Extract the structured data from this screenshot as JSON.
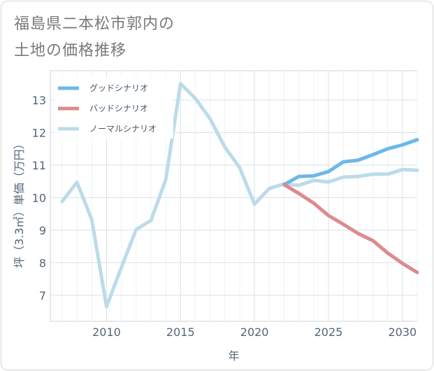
{
  "title_lines": [
    "福島県二本松市郭内の",
    "土地の価格推移"
  ],
  "chart_data": {
    "type": "line",
    "title": "福島県二本松市郭内の土地の価格推移",
    "xlabel": "年",
    "ylabel": "坪（3.3㎡）単価（万円）",
    "xlim": [
      2006.2,
      2031
    ],
    "ylim": [
      6.2,
      13.9
    ],
    "x_ticks": [
      2010,
      2015,
      2020,
      2025,
      2030
    ],
    "y_ticks": [
      7,
      8,
      9,
      10,
      11,
      12,
      13
    ],
    "grid": true,
    "legend_position": "top-left",
    "series": [
      {
        "name": "グッドシナリオ",
        "color": "#6cb8ea",
        "x": [
          2022,
          2023,
          2024,
          2025,
          2026,
          2027,
          2028,
          2029,
          2030,
          2031
        ],
        "y": [
          10.4,
          10.65,
          10.67,
          10.8,
          11.1,
          11.15,
          11.32,
          11.5,
          11.62,
          11.78
        ]
      },
      {
        "name": "バッドシナリオ",
        "color": "#dc8a8f",
        "x": [
          2022,
          2023,
          2024,
          2025,
          2026,
          2027,
          2028,
          2029,
          2030,
          2031
        ],
        "y": [
          10.4,
          10.13,
          9.83,
          9.45,
          9.18,
          8.9,
          8.68,
          8.3,
          7.98,
          7.7
        ]
      },
      {
        "name": "ノーマルシナリオ",
        "color": "#bcdbea",
        "x": [
          2007,
          2008,
          2009,
          2010,
          2011,
          2012,
          2013,
          2014,
          2015,
          2016,
          2017,
          2018,
          2019,
          2020,
          2021,
          2022,
          2023,
          2024,
          2025,
          2026,
          2027,
          2028,
          2029,
          2030,
          2031
        ],
        "y": [
          9.88,
          10.47,
          9.33,
          6.65,
          7.85,
          9.02,
          9.3,
          10.55,
          13.5,
          13.05,
          12.42,
          11.55,
          10.92,
          9.8,
          10.28,
          10.42,
          10.38,
          10.53,
          10.48,
          10.63,
          10.65,
          10.72,
          10.72,
          10.86,
          10.84
        ]
      }
    ]
  }
}
